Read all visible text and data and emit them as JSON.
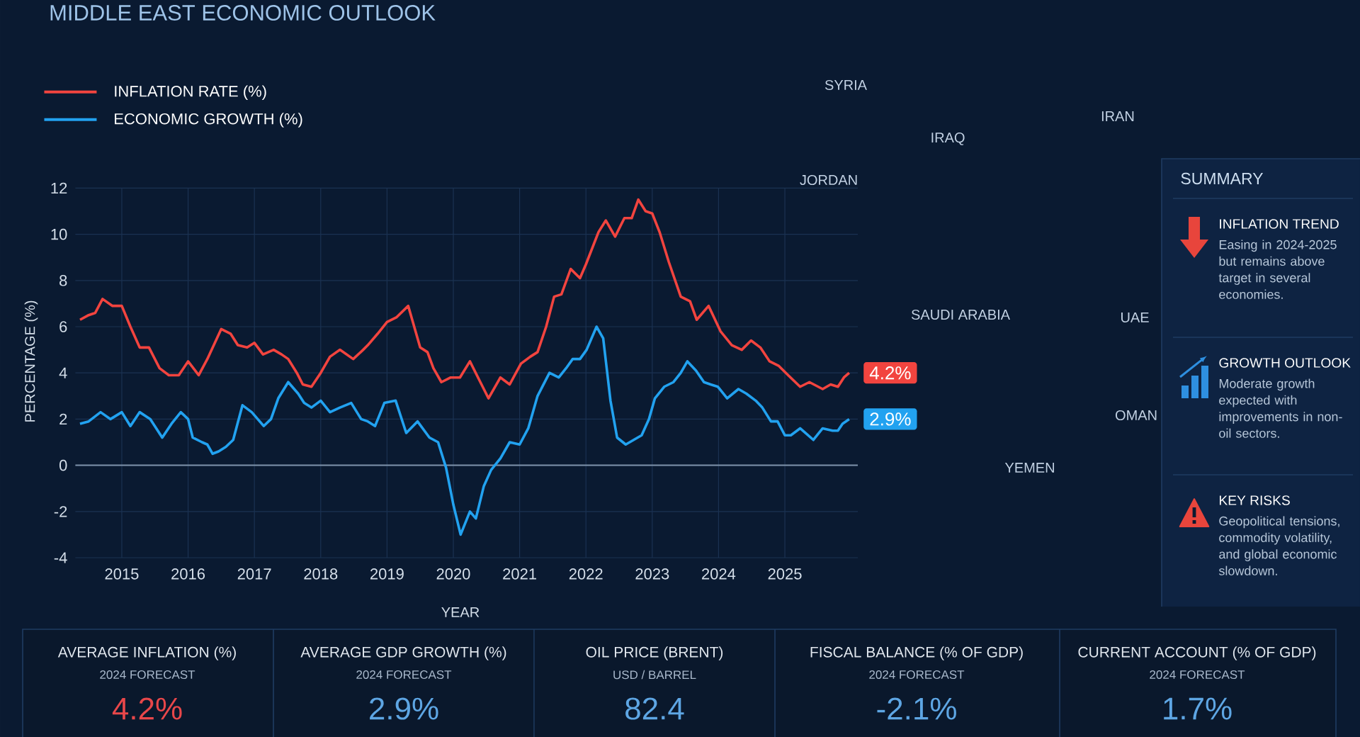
{
  "chart_data": [
    {
      "type": "line",
      "title": "MIDDLE EAST ECONOMIC OUTLOOK",
      "xlabel": "YEAR",
      "ylabel": "PERCENTAGE (%)",
      "xlim": [
        2014.3,
        2026.1
      ],
      "ylim": [
        -4,
        12
      ],
      "xticks": [
        2015,
        2016,
        2017,
        2018,
        2019,
        2020,
        2021,
        2022,
        2023,
        2024,
        2025
      ],
      "yticks": [
        -4,
        -2,
        0,
        2,
        4,
        6,
        8,
        10,
        12
      ],
      "grid": true,
      "legend": "top left",
      "series": [
        {
          "name": "INFLATION RATE (%)",
          "color": "#f2443f",
          "x": [
            2014.37,
            2014.5,
            2014.6,
            2014.71,
            2014.86,
            2015.0,
            2015.13,
            2015.27,
            2015.41,
            2015.57,
            2015.71,
            2015.86,
            2016.0,
            2016.16,
            2016.29,
            2016.5,
            2016.64,
            2016.75,
            2016.89,
            2017.0,
            2017.13,
            2017.29,
            2017.41,
            2017.51,
            2017.64,
            2017.73,
            2017.86,
            2018.0,
            2018.14,
            2018.29,
            2018.49,
            2018.64,
            2018.71,
            2018.86,
            2019.0,
            2019.14,
            2019.32,
            2019.5,
            2019.61,
            2019.7,
            2019.82,
            2019.96,
            2020.1,
            2020.25,
            2020.39,
            2020.53,
            2020.71,
            2020.85,
            2021.02,
            2021.16,
            2021.27,
            2021.4,
            2021.52,
            2021.63,
            2021.77,
            2021.91,
            2022.0,
            2022.19,
            2022.3,
            2022.44,
            2022.58,
            2022.69,
            2022.79,
            2022.9,
            2023.0,
            2023.11,
            2023.25,
            2023.43,
            2023.57,
            2023.67,
            2023.85,
            2024.03,
            2024.2,
            2024.35,
            2024.49,
            2024.63,
            2024.77,
            2024.91,
            2025.05,
            2025.23,
            2025.37,
            2025.57,
            2025.69,
            2025.8,
            2025.89,
            2025.97
          ],
          "values": [
            6.3,
            6.5,
            6.6,
            7.2,
            6.9,
            6.9,
            6.0,
            5.1,
            5.1,
            4.2,
            3.9,
            3.9,
            4.5,
            3.9,
            4.6,
            5.9,
            5.7,
            5.2,
            5.1,
            5.3,
            4.8,
            5.0,
            4.8,
            4.6,
            4.0,
            3.5,
            3.4,
            4.0,
            4.7,
            5.0,
            4.6,
            5.0,
            5.2,
            5.7,
            6.2,
            6.4,
            6.9,
            5.1,
            4.9,
            4.2,
            3.6,
            3.8,
            3.8,
            4.5,
            3.7,
            2.9,
            3.8,
            3.5,
            4.4,
            4.7,
            4.9,
            6.0,
            7.3,
            7.4,
            8.5,
            8.1,
            8.7,
            10.1,
            10.6,
            9.9,
            10.7,
            10.7,
            11.5,
            11.0,
            10.9,
            10.1,
            8.8,
            7.3,
            7.1,
            6.3,
            6.9,
            5.8,
            5.2,
            5.0,
            5.4,
            5.1,
            4.5,
            4.3,
            3.9,
            3.4,
            3.6,
            3.3,
            3.5,
            3.4,
            3.8,
            4.0
          ]
        },
        {
          "name": "ECONOMIC GROWTH (%)",
          "color": "#22a2f0",
          "x": [
            2014.37,
            2014.5,
            2014.68,
            2014.83,
            2015.0,
            2015.13,
            2015.27,
            2015.43,
            2015.61,
            2015.75,
            2015.89,
            2016.0,
            2016.07,
            2016.21,
            2016.29,
            2016.37,
            2016.46,
            2016.57,
            2016.68,
            2016.82,
            2016.96,
            2017.14,
            2017.25,
            2017.36,
            2017.51,
            2017.66,
            2017.75,
            2017.86,
            2018.0,
            2018.14,
            2018.29,
            2018.46,
            2018.61,
            2018.71,
            2018.82,
            2018.96,
            2019.13,
            2019.29,
            2019.46,
            2019.64,
            2019.77,
            2019.89,
            2020.0,
            2020.11,
            2020.25,
            2020.34,
            2020.46,
            2020.57,
            2020.71,
            2020.85,
            2021.0,
            2021.13,
            2021.27,
            2021.45,
            2021.59,
            2021.7,
            2021.8,
            2021.91,
            2022.01,
            2022.16,
            2022.26,
            2022.37,
            2022.47,
            2022.6,
            2022.72,
            2022.84,
            2022.95,
            2023.04,
            2023.18,
            2023.32,
            2023.43,
            2023.53,
            2023.66,
            2023.78,
            2023.88,
            2023.99,
            2024.13,
            2024.3,
            2024.42,
            2024.56,
            2024.66,
            2024.79,
            2024.89,
            2025.0,
            2025.09,
            2025.23,
            2025.31,
            2025.43,
            2025.57,
            2025.72,
            2025.8,
            2025.87,
            2025.97
          ],
          "values": [
            1.8,
            1.9,
            2.3,
            2.0,
            2.3,
            1.7,
            2.3,
            2.0,
            1.2,
            1.8,
            2.3,
            2.0,
            1.2,
            1.0,
            0.9,
            0.5,
            0.6,
            0.8,
            1.1,
            2.6,
            2.3,
            1.7,
            2.0,
            2.9,
            3.6,
            3.1,
            2.7,
            2.5,
            2.8,
            2.3,
            2.5,
            2.7,
            2.0,
            1.9,
            1.7,
            2.7,
            2.8,
            1.4,
            1.9,
            1.2,
            1.0,
            -0.1,
            -1.7,
            -3.0,
            -2.0,
            -2.3,
            -0.9,
            -0.2,
            0.3,
            1.0,
            0.9,
            1.6,
            3.0,
            4.0,
            3.8,
            4.2,
            4.6,
            4.6,
            5.0,
            6.0,
            5.5,
            2.8,
            1.2,
            0.9,
            1.1,
            1.3,
            2.0,
            2.9,
            3.4,
            3.6,
            4.0,
            4.5,
            4.1,
            3.6,
            3.5,
            3.4,
            2.9,
            3.3,
            3.1,
            2.8,
            2.5,
            1.9,
            1.9,
            1.3,
            1.3,
            1.6,
            1.4,
            1.1,
            1.6,
            1.5,
            1.5,
            1.8,
            2.0
          ]
        }
      ],
      "ref_lines": [
        {
          "axis": "y",
          "value": 0,
          "color": "#7f93ab"
        }
      ],
      "annotations": [
        {
          "text": "4.2%",
          "x": 2025.97,
          "y": 4.0
        },
        {
          "text": "2.9%",
          "x": 2025.97,
          "y": 2.0
        },
        "SYRIA",
        "IRAQ",
        "IRAN",
        "JORDAN",
        "SAUDI ARABIA",
        "UAE",
        "OMAN",
        "YEMEN"
      ]
    },
    {
      "type": "other",
      "title": "SUMMARY",
      "categories": [
        "INFLATION TREND",
        "GROWTH OUTLOOK",
        "KEY RISKS"
      ],
      "annotations": [
        "Easing in 2024-2025 but remains above target in several economies.",
        "Moderate growth expected with improvements in non-oil sectors.",
        "Geopolitical tensions, commodity volatility, and global economic slowdown."
      ]
    },
    {
      "type": "other",
      "title": "AVERAGE INFLATION (%)",
      "subtitle": "2024 FORECAST",
      "annotations": [
        "4.2%"
      ],
      "color": "#e8474a"
    },
    {
      "type": "other",
      "title": "AVERAGE GDP GROWTH (%)",
      "subtitle": "2024 FORECAST",
      "annotations": [
        "2.9%"
      ],
      "color": "#5ea6e4"
    },
    {
      "type": "other",
      "title": "OIL PRICE (BRENT)",
      "subtitle": "USD / BARREL",
      "annotations": [
        "82.4"
      ],
      "color": "#5ea6e4"
    },
    {
      "type": "other",
      "title": "FISCAL BALANCE (% OF GDP)",
      "subtitle": "2024 FORECAST",
      "annotations": [
        "-2.1%"
      ],
      "color": "#5ea6e4"
    },
    {
      "type": "other",
      "title": "CURRENT ACCOUNT (% OF GDP)",
      "subtitle": "2024 FORECAST",
      "annotations": [
        "1.7%"
      ],
      "color": "#5ea6e4"
    }
  ]
}
